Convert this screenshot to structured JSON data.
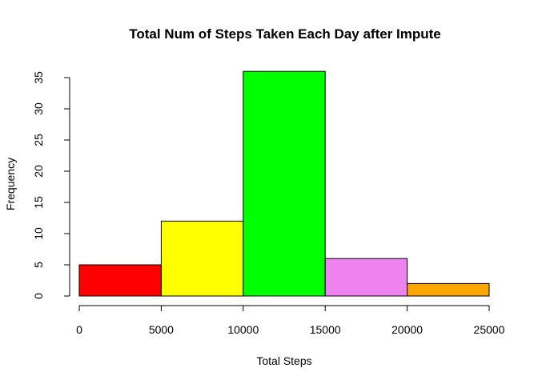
{
  "chart_data": {
    "type": "bar",
    "title": "Total Num of Steps Taken Each Day after Impute",
    "xlabel": "Total Steps",
    "ylabel": "Frequency",
    "bins": [
      {
        "from": 0,
        "to": 5000,
        "value": 5,
        "color": "#ff0000"
      },
      {
        "from": 5000,
        "to": 10000,
        "value": 12,
        "color": "#ffff00"
      },
      {
        "from": 10000,
        "to": 15000,
        "value": 36,
        "color": "#00ff00"
      },
      {
        "from": 15000,
        "to": 20000,
        "value": 6,
        "color": "#ee82ee"
      },
      {
        "from": 20000,
        "to": 25000,
        "value": 2,
        "color": "#ffa500"
      }
    ],
    "x_ticks": [
      0,
      5000,
      10000,
      15000,
      20000,
      25000
    ],
    "x_tick_labels": [
      "0",
      "5000",
      "10000",
      "15000",
      "20000",
      "25000"
    ],
    "y_ticks": [
      0,
      5,
      10,
      15,
      20,
      25,
      30,
      35
    ],
    "y_tick_labels": [
      "0",
      "5",
      "10",
      "15",
      "20",
      "25",
      "30",
      "35"
    ],
    "xlim": [
      0,
      25000
    ],
    "ylim": [
      0,
      36
    ],
    "grid": false,
    "legend": "none"
  }
}
